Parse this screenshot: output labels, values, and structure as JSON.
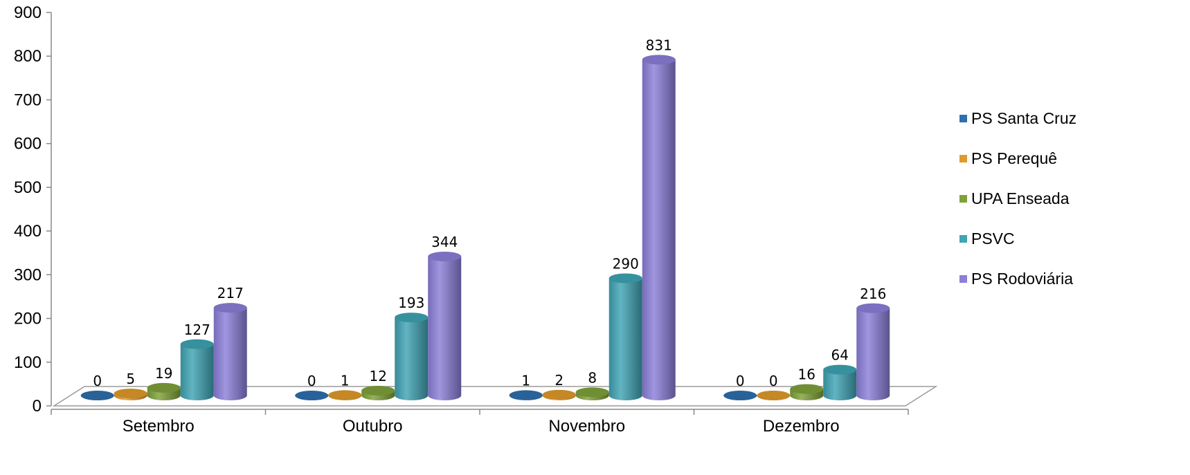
{
  "chart_data": {
    "type": "bar",
    "categories": [
      "Setembro",
      "Outubro",
      "Novembro",
      "Dezembro"
    ],
    "series": [
      {
        "name": "PS Santa Cruz",
        "color": "#2E6FAE",
        "values": [
          0,
          0,
          1,
          0
        ]
      },
      {
        "name": "PS Perequê",
        "color": "#E09A2A",
        "values": [
          5,
          1,
          2,
          0
        ]
      },
      {
        "name": "UPA Enseada",
        "color": "#7FA13A",
        "values": [
          19,
          12,
          8,
          16
        ]
      },
      {
        "name": "PSVC",
        "color": "#3FA4B4",
        "values": [
          127,
          193,
          290,
          64
        ]
      },
      {
        "name": "PS Rodoviária",
        "color": "#8B7FD9",
        "values": [
          217,
          344,
          831,
          216
        ]
      }
    ],
    "ylim": [
      0,
      900
    ],
    "yticks": [
      "0",
      "100",
      "200",
      "300",
      "400",
      "500",
      "600",
      "700",
      "800",
      "900"
    ],
    "legend_position": "right",
    "grid": false,
    "style": "3d-cylinder"
  }
}
